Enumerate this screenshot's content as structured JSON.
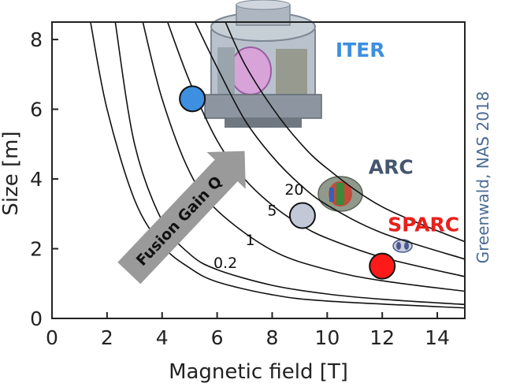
{
  "chart_data": {
    "type": "line",
    "xlabel": "Magnetic field [T]",
    "ylabel": "Size [m]",
    "xlim": [
      0,
      15
    ],
    "ylim": [
      0,
      8.5
    ],
    "x_ticks": [
      "0",
      "2",
      "4",
      "6",
      "8",
      "10",
      "12",
      "14"
    ],
    "y_ticks": [
      "0",
      "2",
      "4",
      "6",
      "8"
    ],
    "grid": false,
    "curves": [
      {
        "label": "0.2",
        "points": [
          [
            2.3,
            8.5
          ],
          [
            3,
            5.0
          ],
          [
            4,
            2.8
          ],
          [
            5,
            1.85
          ],
          [
            6,
            1.4
          ],
          [
            8,
            0.95
          ],
          [
            10,
            0.7
          ],
          [
            12,
            0.55
          ],
          [
            15,
            0.4
          ]
        ],
        "label_at": [
          6.3,
          1.45
        ]
      },
      {
        "label": "1",
        "points": [
          [
            3.3,
            8.5
          ],
          [
            4,
            6.3
          ],
          [
            5,
            4.2
          ],
          [
            6,
            3.1
          ],
          [
            8,
            1.95
          ],
          [
            10,
            1.4
          ],
          [
            12,
            1.08
          ],
          [
            15,
            0.78
          ]
        ],
        "label_at": [
          7.2,
          2.1
        ]
      },
      {
        "label": "5",
        "points": [
          [
            4.2,
            8.5
          ],
          [
            5,
            6.8
          ],
          [
            6,
            5.1
          ],
          [
            7,
            4.0
          ],
          [
            8,
            3.25
          ],
          [
            9,
            2.7
          ],
          [
            10,
            2.3
          ],
          [
            12,
            1.75
          ],
          [
            15,
            1.2
          ]
        ],
        "label_at": [
          8.0,
          2.95
        ]
      },
      {
        "label": "20",
        "points": [
          [
            5.2,
            8.5
          ],
          [
            6,
            7.2
          ],
          [
            7,
            5.7
          ],
          [
            8,
            4.65
          ],
          [
            9,
            3.85
          ],
          [
            10,
            3.25
          ],
          [
            12,
            2.45
          ],
          [
            15,
            1.7
          ]
        ],
        "label_at": [
          8.8,
          3.55
        ]
      },
      {
        "label": "",
        "points": [
          [
            1.4,
            8.5
          ],
          [
            2,
            6.0
          ],
          [
            3,
            3.4
          ],
          [
            4,
            2.1
          ],
          [
            5,
            1.45
          ],
          [
            6,
            1.05
          ],
          [
            8,
            0.68
          ],
          [
            10,
            0.5
          ],
          [
            15,
            0.3
          ]
        ],
        "label_at": null
      },
      {
        "label": "",
        "points": [
          [
            6.3,
            8.5
          ],
          [
            7,
            7.3
          ],
          [
            8,
            6.05
          ],
          [
            9,
            5.05
          ],
          [
            10,
            4.3
          ],
          [
            12,
            3.2
          ],
          [
            15,
            2.2
          ]
        ],
        "label_at": null
      }
    ],
    "machines": [
      {
        "name": "ITER",
        "x": 5.1,
        "y": 6.3,
        "color": "#3d8fe0",
        "label_color": "#3d8fe0",
        "label_at": [
          10.3,
          7.5
        ]
      },
      {
        "name": "ARC",
        "x": 9.1,
        "y": 2.95,
        "color": "#c2c8d6",
        "label_color": "#45566e",
        "label_at": [
          11.5,
          4.15
        ]
      },
      {
        "name": "SPARC",
        "x": 12.0,
        "y": 1.5,
        "color": "#ff1a1a",
        "label_color": "#e8201b",
        "label_at": [
          12.2,
          2.5
        ]
      }
    ],
    "arrow_label": "Fusion Gain Q",
    "credit": "Greenwald, NAS 2018"
  },
  "colors": {
    "axes": "#222222",
    "curve": "#111111",
    "arrow_fill": "#9a9a9a"
  }
}
